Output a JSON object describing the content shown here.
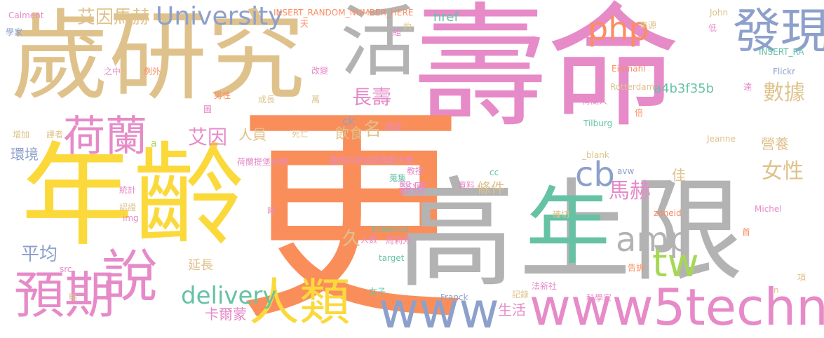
{
  "palette": {
    "tan": "#dfc28b",
    "gold": "#fbd93b",
    "orange": "#fa8e5b",
    "pink": "#e68ac8",
    "gray": "#b3b3b3",
    "teal": "#66c2a5",
    "blue": "#8da0cb",
    "lime": "#a6d854",
    "coral": "#fc8d62"
  },
  "words": [
    "壽命",
    "更",
    "高",
    "年齡",
    "上限",
    "歲研究",
    "活",
    "發現",
    "年",
    "荷蘭",
    "說",
    "預期",
    "人類",
    "www5technews",
    "www",
    "tw",
    "cb",
    "php",
    "amp",
    "University",
    "delivery",
    "長壽",
    "數據",
    "女性",
    "馬赫",
    "艾因馬赫",
    "艾因",
    "平均",
    "名",
    "久",
    "醫療",
    "條件",
    "飲食",
    "人員",
    "環境",
    "卡爾蒙",
    "延長",
    "生活",
    "營養",
    "佳",
    "a4b3f35b",
    "href",
    "INSERT_RANDOM_NUMBER_HERE",
    "Calment",
    "學家",
    "John",
    "來源",
    "低",
    "Einmahl",
    "INSERT_RA",
    "Flickr",
    "Rotterdam",
    "荷蘭人",
    "達",
    "道",
    "倍",
    "Tilburg",
    "Jeanne",
    "_blank",
    "avw",
    "cc",
    "zoneid",
    "Michel",
    "確切",
    "告訴",
    "科學家",
    "項",
    "n",
    "法新社",
    "記錄",
    "Franck",
    "女子",
    "target",
    "Erasmus",
    "周莉芳",
    "人數",
    "蒐集",
    "資料",
    "教授",
    "鹿特丹伊拉斯莫斯大學",
    "荷蘭提堡大學",
    "ck",
    "法國",
    "死亡",
    "圖",
    "萬",
    "成長",
    "男性",
    "改變",
    "之中",
    "例外",
    "天",
    "約",
    "組",
    "a",
    "增加",
    "譯者",
    "統計",
    "認證",
    "img",
    "src",
    "略",
    "時",
    "首"
  ]
}
